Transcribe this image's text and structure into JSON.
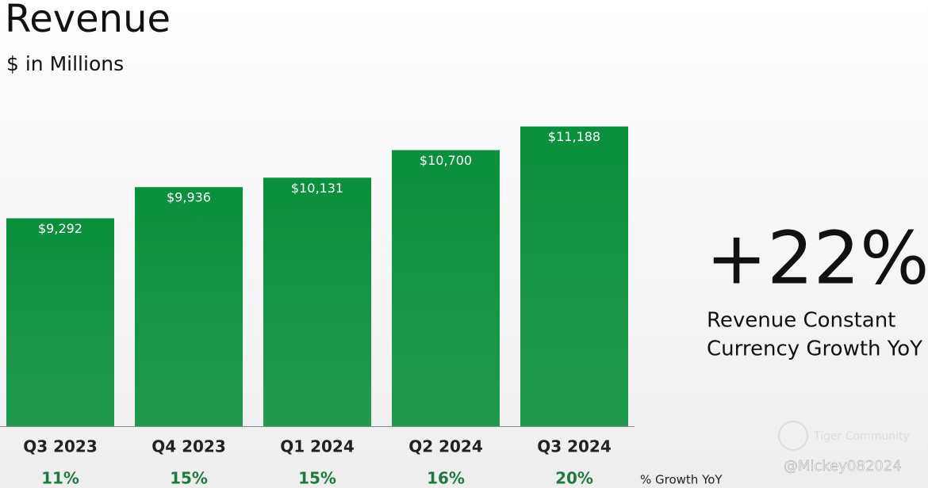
{
  "chart_data": {
    "type": "bar",
    "title": "Revenue",
    "subtitle": "$ in Millions",
    "categories": [
      "Q3 2023",
      "Q4 2023",
      "Q1 2024",
      "Q2 2024",
      "Q3 2024"
    ],
    "values": [
      9292,
      9936,
      10131,
      10700,
      11188
    ],
    "value_labels": [
      "$9,292",
      "$9,936",
      "$10,131",
      "$10,700",
      "$11,188"
    ],
    "color": "#0a8f3c",
    "ylim": [
      5000,
      12000
    ],
    "growth": {
      "label": "% Growth YoY",
      "values": [
        11,
        15,
        15,
        16,
        20
      ],
      "value_labels": [
        "11%",
        "15%",
        "15%",
        "16%",
        "20%"
      ],
      "color": "#1f7a3e"
    },
    "annotation": {
      "headline": "+22%",
      "lines": [
        "Revenue Constant",
        "Currency Growth YoY"
      ]
    },
    "watermark": [
      "Tiger Community",
      "@Mickey082024"
    ]
  }
}
